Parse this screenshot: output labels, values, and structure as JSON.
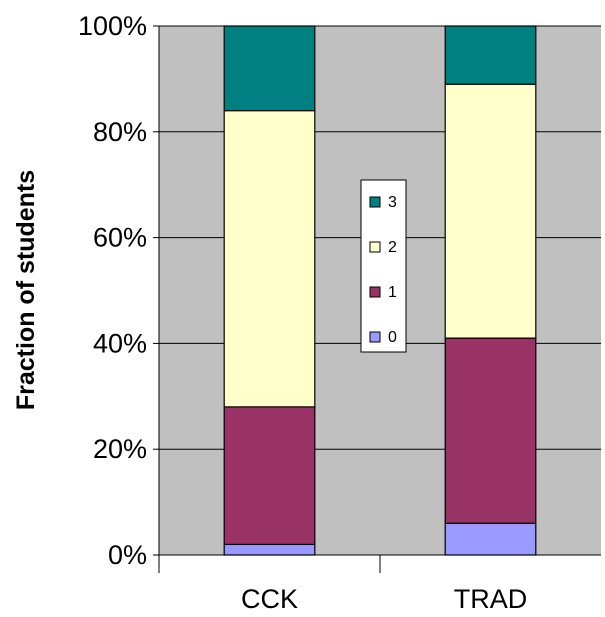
{
  "chart_data": {
    "type": "bar",
    "stacked": true,
    "categories": [
      "CCK",
      "TRAD"
    ],
    "series": [
      {
        "name": "0",
        "values": [
          2,
          6
        ],
        "color": "#9999FF"
      },
      {
        "name": "1",
        "values": [
          26,
          35
        ],
        "color": "#993366"
      },
      {
        "name": "2",
        "values": [
          56,
          48
        ],
        "color": "#FFFFCC"
      },
      {
        "name": "3",
        "values": [
          16,
          11
        ],
        "color": "#008080"
      }
    ],
    "title": "",
    "xlabel": "",
    "ylabel": "Fraction of students",
    "ylim": [
      0,
      100
    ],
    "yticks": [
      "0%",
      "20%",
      "40%",
      "60%",
      "80%",
      "100%"
    ],
    "grid": true,
    "plot_background": "#C0C0C0",
    "legend_placement": "center",
    "legend_order": [
      "3",
      "2",
      "1",
      "0"
    ]
  }
}
